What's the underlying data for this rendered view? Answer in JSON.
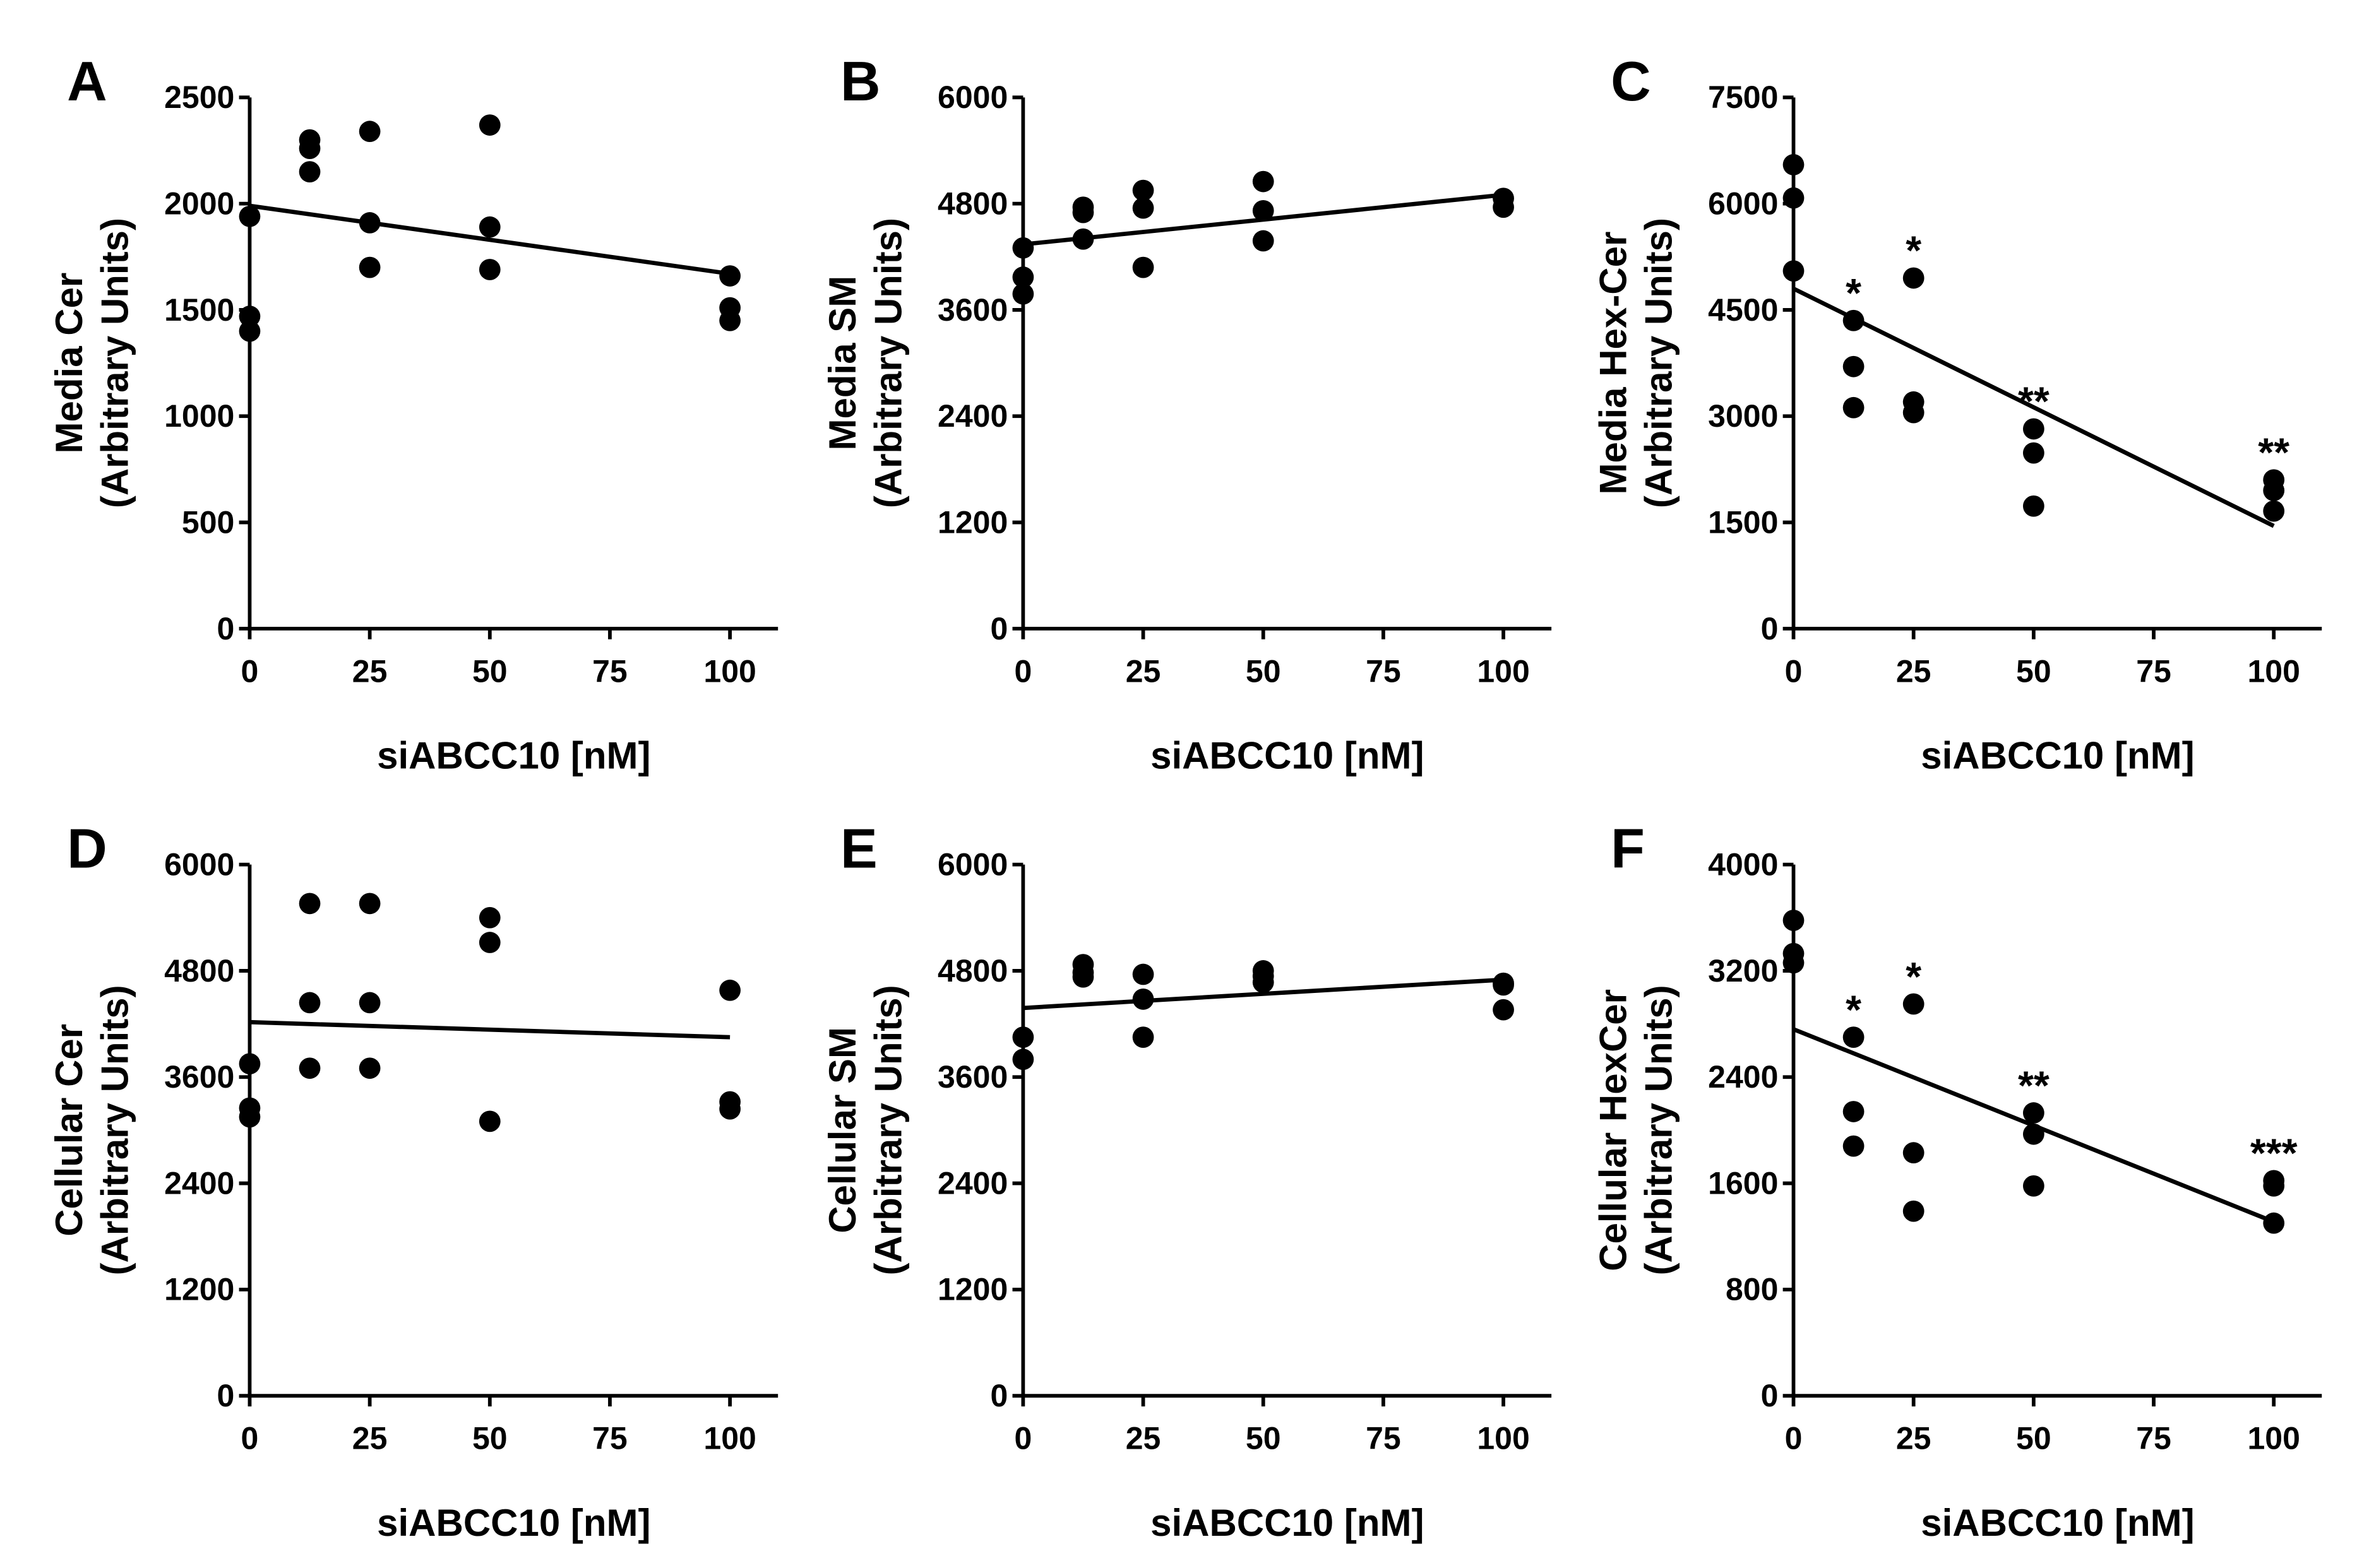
{
  "chart_data": [
    {
      "panel": "A",
      "type": "scatter",
      "ylabel": "Media Cer",
      "ylabel_units": "(Arbitrary Units)",
      "xlabel": "siABCC10 [nM]",
      "xlim": [
        0,
        110
      ],
      "ylim": [
        0,
        2500
      ],
      "xticks": [
        "0",
        "25",
        "50",
        "75",
        "100"
      ],
      "yticks": [
        "0",
        "500",
        "1000",
        "1500",
        "2000",
        "2500"
      ],
      "points": [
        [
          0,
          1940
        ],
        [
          0,
          1470
        ],
        [
          0,
          1400
        ],
        [
          12.5,
          2300
        ],
        [
          12.5,
          2260
        ],
        [
          12.5,
          2150
        ],
        [
          25,
          2340
        ],
        [
          25,
          1910
        ],
        [
          25,
          1700
        ],
        [
          50,
          2370
        ],
        [
          50,
          1890
        ],
        [
          50,
          1690
        ],
        [
          100,
          1660
        ],
        [
          100,
          1510
        ],
        [
          100,
          1450
        ]
      ],
      "fit": [
        [
          0,
          1990
        ],
        [
          100,
          1670
        ]
      ],
      "significance": []
    },
    {
      "panel": "B",
      "type": "scatter",
      "ylabel": "Media SM",
      "ylabel_units": "(Arbitrary Units)",
      "xlabel": "siABCC10 [nM]",
      "xlim": [
        0,
        110
      ],
      "ylim": [
        0,
        6000
      ],
      "xticks": [
        "0",
        "25",
        "50",
        "75",
        "100"
      ],
      "yticks": [
        "0",
        "1200",
        "2400",
        "3600",
        "4800",
        "6000"
      ],
      "points": [
        [
          0,
          4300
        ],
        [
          0,
          3970
        ],
        [
          0,
          3780
        ],
        [
          12.5,
          4760
        ],
        [
          12.5,
          4700
        ],
        [
          12.5,
          4400
        ],
        [
          25,
          4950
        ],
        [
          25,
          4750
        ],
        [
          25,
          4080
        ],
        [
          50,
          5050
        ],
        [
          50,
          4720
        ],
        [
          50,
          4380
        ],
        [
          100,
          4860
        ],
        [
          100,
          4760
        ]
      ],
      "fit": [
        [
          0,
          4340
        ],
        [
          100,
          4900
        ]
      ],
      "significance": []
    },
    {
      "panel": "C",
      "type": "scatter",
      "ylabel": "Media Hex-Cer",
      "ylabel_units": "(Arbitrary Units)",
      "xlabel": "siABCC10 [nM]",
      "xlim": [
        0,
        110
      ],
      "ylim": [
        0,
        7500
      ],
      "xticks": [
        "0",
        "25",
        "50",
        "75",
        "100"
      ],
      "yticks": [
        "0",
        "1500",
        "3000",
        "4500",
        "6000",
        "7500"
      ],
      "points": [
        [
          0,
          6550
        ],
        [
          0,
          6080
        ],
        [
          0,
          5050
        ],
        [
          12.5,
          4350
        ],
        [
          12.5,
          3700
        ],
        [
          12.5,
          3120
        ],
        [
          25,
          4950
        ],
        [
          25,
          3200
        ],
        [
          25,
          3050
        ],
        [
          50,
          2820
        ],
        [
          50,
          2480
        ],
        [
          50,
          1730
        ],
        [
          100,
          2100
        ],
        [
          100,
          1950
        ],
        [
          100,
          1660
        ]
      ],
      "fit": [
        [
          0,
          4800
        ],
        [
          100,
          1450
        ]
      ],
      "significance": [
        {
          "x": 12.5,
          "label": "*"
        },
        {
          "x": 25,
          "label": "*"
        },
        {
          "x": 50,
          "label": "**"
        },
        {
          "x": 100,
          "label": "**"
        }
      ]
    },
    {
      "panel": "D",
      "type": "scatter",
      "ylabel": "Cellular Cer",
      "ylabel_units": "(Arbitrary Units)",
      "xlabel": "siABCC10 [nM]",
      "xlim": [
        0,
        110
      ],
      "ylim": [
        0,
        6000
      ],
      "xticks": [
        "0",
        "25",
        "50",
        "75",
        "100"
      ],
      "yticks": [
        "0",
        "1200",
        "2400",
        "3600",
        "4800",
        "6000"
      ],
      "points": [
        [
          0,
          3750
        ],
        [
          0,
          3250
        ],
        [
          0,
          3150
        ],
        [
          12.5,
          5560
        ],
        [
          12.5,
          4440
        ],
        [
          12.5,
          3700
        ],
        [
          25,
          5560
        ],
        [
          25,
          4440
        ],
        [
          25,
          3700
        ],
        [
          50,
          5400
        ],
        [
          50,
          5120
        ],
        [
          50,
          3100
        ],
        [
          100,
          4580
        ],
        [
          100,
          3320
        ],
        [
          100,
          3240
        ]
      ],
      "fit": [
        [
          0,
          4220
        ],
        [
          100,
          4050
        ]
      ],
      "significance": []
    },
    {
      "panel": "E",
      "type": "scatter",
      "ylabel": "Cellular SM",
      "ylabel_units": "(Arbitrary Units)",
      "xlabel": "siABCC10 [nM]",
      "xlim": [
        0,
        110
      ],
      "ylim": [
        0,
        6000
      ],
      "xticks": [
        "0",
        "25",
        "50",
        "75",
        "100"
      ],
      "yticks": [
        "0",
        "1200",
        "2400",
        "3600",
        "4800",
        "6000"
      ],
      "points": [
        [
          0,
          4050
        ],
        [
          0,
          3800
        ],
        [
          12.5,
          4870
        ],
        [
          12.5,
          4780
        ],
        [
          12.5,
          4730
        ],
        [
          25,
          4760
        ],
        [
          25,
          4480
        ],
        [
          25,
          4050
        ],
        [
          50,
          4800
        ],
        [
          50,
          4740
        ],
        [
          50,
          4670
        ],
        [
          100,
          4660
        ],
        [
          100,
          4640
        ],
        [
          100,
          4360
        ]
      ],
      "fit": [
        [
          0,
          4380
        ],
        [
          100,
          4700
        ]
      ],
      "significance": []
    },
    {
      "panel": "F",
      "type": "scatter",
      "ylabel": "Cellular HexCer",
      "ylabel_units": "(Arbitrary Units)",
      "xlabel": "siABCC10 [nM]",
      "xlim": [
        0,
        110
      ],
      "ylim": [
        0,
        4000
      ],
      "xticks": [
        "0",
        "25",
        "50",
        "75",
        "100"
      ],
      "yticks": [
        "0",
        "800",
        "1600",
        "2400",
        "3200",
        "4000"
      ],
      "points": [
        [
          0,
          3580
        ],
        [
          0,
          3330
        ],
        [
          0,
          3260
        ],
        [
          12.5,
          2700
        ],
        [
          12.5,
          2140
        ],
        [
          12.5,
          1880
        ],
        [
          25,
          2950
        ],
        [
          25,
          1830
        ],
        [
          25,
          1390
        ],
        [
          50,
          2130
        ],
        [
          50,
          1970
        ],
        [
          50,
          1580
        ],
        [
          100,
          1620
        ],
        [
          100,
          1580
        ],
        [
          100,
          1300
        ]
      ],
      "fit": [
        [
          0,
          2760
        ],
        [
          100,
          1310
        ]
      ],
      "significance": [
        {
          "x": 12.5,
          "label": "*"
        },
        {
          "x": 25,
          "label": "*"
        },
        {
          "x": 50,
          "label": "**"
        },
        {
          "x": 100,
          "label": "***"
        }
      ]
    }
  ]
}
